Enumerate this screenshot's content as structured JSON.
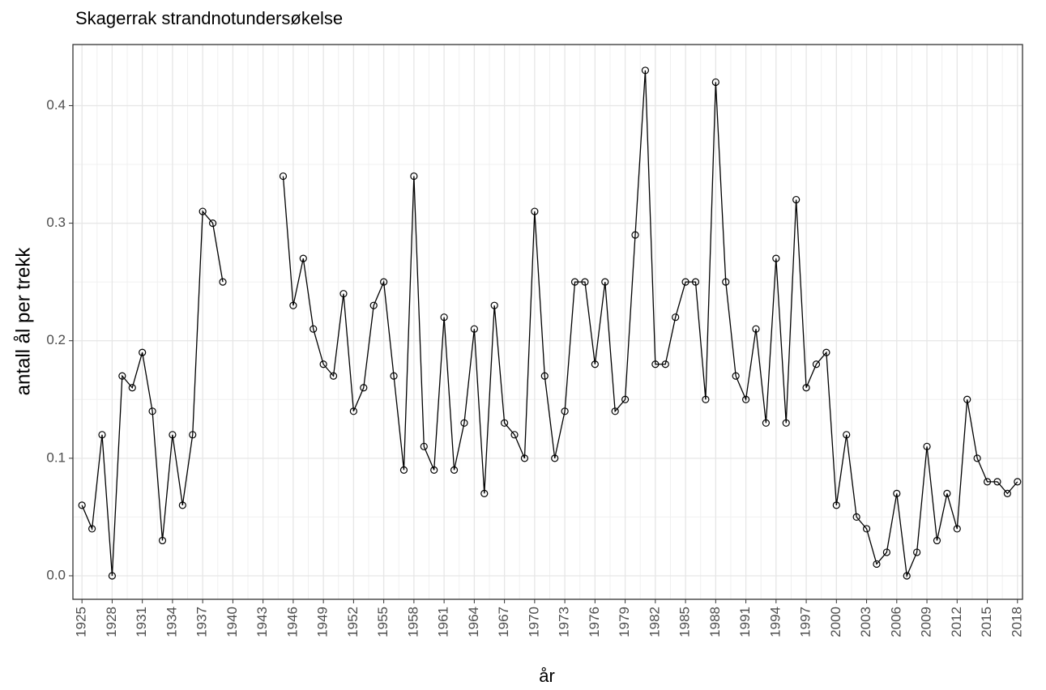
{
  "chart_data": {
    "type": "line",
    "title": "Skagerrak strandnotundersøkelse",
    "xlabel": "år",
    "ylabel": "antall ål per trekk",
    "x": [
      1925,
      1926,
      1927,
      1928,
      1929,
      1930,
      1931,
      1932,
      1933,
      1934,
      1935,
      1936,
      1937,
      1938,
      1939,
      1940,
      1941,
      1942,
      1943,
      1944,
      1945,
      1946,
      1947,
      1948,
      1949,
      1950,
      1951,
      1952,
      1953,
      1954,
      1955,
      1956,
      1957,
      1958,
      1959,
      1960,
      1961,
      1962,
      1963,
      1964,
      1965,
      1966,
      1967,
      1968,
      1969,
      1970,
      1971,
      1972,
      1973,
      1974,
      1975,
      1976,
      1977,
      1978,
      1979,
      1980,
      1981,
      1982,
      1983,
      1984,
      1985,
      1986,
      1987,
      1988,
      1989,
      1990,
      1991,
      1992,
      1993,
      1994,
      1995,
      1996,
      1997,
      1998,
      1999,
      2000,
      2001,
      2002,
      2003,
      2004,
      2005,
      2006,
      2007,
      2008,
      2009,
      2010,
      2011,
      2012,
      2013,
      2014,
      2015,
      2016,
      2017,
      2018
    ],
    "series": [
      {
        "name": "antall ål per trekk",
        "color": "#000000",
        "values": [
          0.06,
          0.04,
          0.12,
          0.0,
          0.17,
          0.16,
          0.19,
          0.14,
          0.03,
          0.12,
          0.06,
          0.12,
          0.31,
          0.3,
          0.25,
          null,
          null,
          null,
          null,
          null,
          0.34,
          0.23,
          0.27,
          0.21,
          0.18,
          0.17,
          0.24,
          0.14,
          0.16,
          0.23,
          0.25,
          0.17,
          0.09,
          0.34,
          0.11,
          0.09,
          0.22,
          0.09,
          0.13,
          0.21,
          0.07,
          0.23,
          0.13,
          0.12,
          0.1,
          0.31,
          0.17,
          0.1,
          0.14,
          0.25,
          0.25,
          0.18,
          0.25,
          0.14,
          0.15,
          0.29,
          0.43,
          0.18,
          0.18,
          0.22,
          0.25,
          0.25,
          0.15,
          0.42,
          0.25,
          0.17,
          0.15,
          0.21,
          0.13,
          0.27,
          0.13,
          0.32,
          0.16,
          0.18,
          0.19,
          0.06,
          0.12,
          0.05,
          0.04,
          0.01,
          0.02,
          0.07,
          0.0,
          0.02,
          0.11,
          0.03,
          0.07,
          0.04,
          0.15,
          0.1,
          0.08,
          0.08,
          0.07,
          0.08
        ]
      }
    ],
    "xlim": [
      1924.1,
      2018.5
    ],
    "ylim": [
      -0.02,
      0.452
    ],
    "xticks": [
      1925,
      1928,
      1931,
      1934,
      1937,
      1940,
      1943,
      1946,
      1949,
      1952,
      1955,
      1958,
      1961,
      1964,
      1967,
      1970,
      1973,
      1976,
      1979,
      1982,
      1985,
      1988,
      1991,
      1994,
      1997,
      2000,
      2003,
      2006,
      2009,
      2012,
      2015,
      2018
    ],
    "yticks": [
      {
        "value": 0,
        "label": "0.0"
      },
      0.1,
      0.2,
      0.3,
      0.4
    ],
    "grid": true
  }
}
